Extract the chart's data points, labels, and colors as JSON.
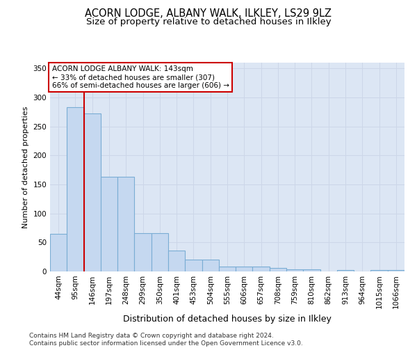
{
  "title1": "ACORN LODGE, ALBANY WALK, ILKLEY, LS29 9LZ",
  "title2": "Size of property relative to detached houses in Ilkley",
  "xlabel": "Distribution of detached houses by size in Ilkley",
  "ylabel": "Number of detached properties",
  "bar_labels": [
    "44sqm",
    "95sqm",
    "146sqm",
    "197sqm",
    "248sqm",
    "299sqm",
    "350sqm",
    "401sqm",
    "453sqm",
    "504sqm",
    "555sqm",
    "606sqm",
    "657sqm",
    "708sqm",
    "759sqm",
    "810sqm",
    "862sqm",
    "913sqm",
    "964sqm",
    "1015sqm",
    "1066sqm"
  ],
  "bar_values": [
    65,
    283,
    272,
    163,
    163,
    66,
    66,
    36,
    20,
    20,
    8,
    9,
    9,
    6,
    4,
    4,
    0,
    3,
    0,
    2,
    3
  ],
  "bar_color": "#c5d8f0",
  "bar_edge_color": "#7aadd4",
  "annotation_line1": "ACORN LODGE ALBANY WALK: 143sqm",
  "annotation_line2": "← 33% of detached houses are smaller (307)",
  "annotation_line3": "66% of semi-detached houses are larger (606) →",
  "vline_x": 1.5,
  "vline_color": "#cc0000",
  "annotation_box_facecolor": "#ffffff",
  "annotation_box_edgecolor": "#cc0000",
  "ylim": [
    0,
    360
  ],
  "yticks": [
    0,
    50,
    100,
    150,
    200,
    250,
    300,
    350
  ],
  "grid_color": "#ccd6e8",
  "background_color": "#dce6f4",
  "footer_text": "Contains HM Land Registry data © Crown copyright and database right 2024.\nContains public sector information licensed under the Open Government Licence v3.0.",
  "title1_fontsize": 10.5,
  "title2_fontsize": 9.5,
  "xlabel_fontsize": 9,
  "ylabel_fontsize": 8,
  "tick_fontsize": 7.5,
  "annotation_fontsize": 7.5,
  "footer_fontsize": 6.5
}
